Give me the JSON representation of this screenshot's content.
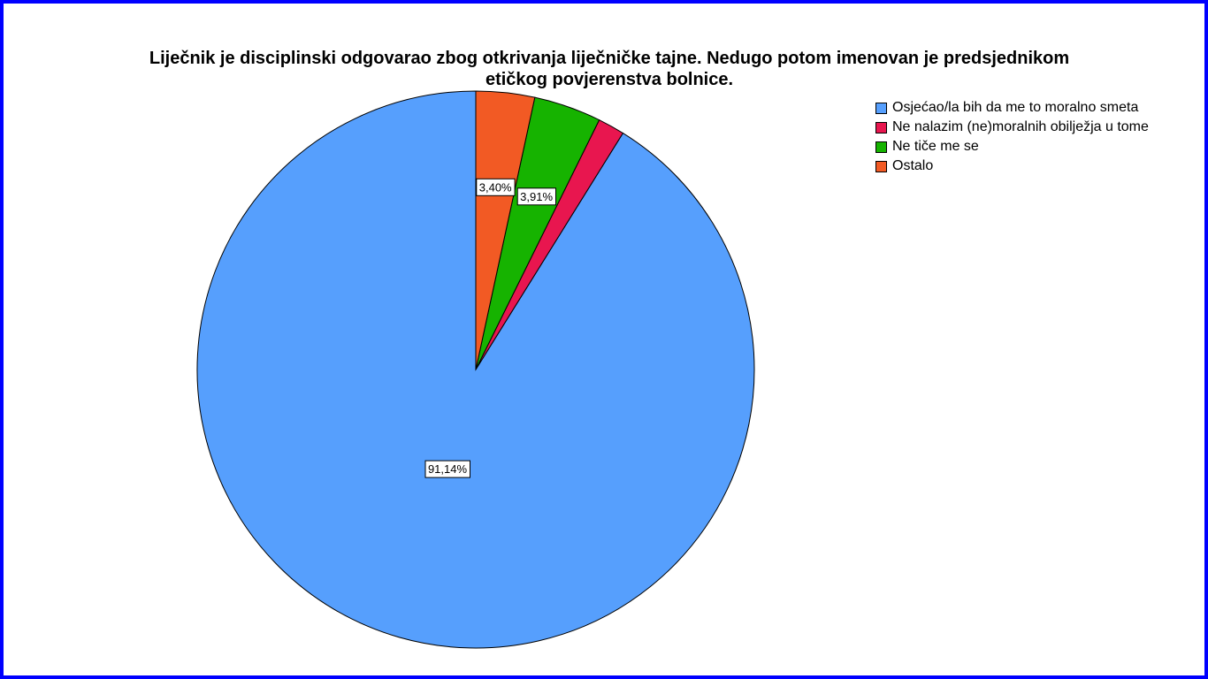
{
  "chart_data": {
    "type": "pie",
    "title": "Liječnik je disciplinski odgovarao zbog otkrivanja liječničke tajne. Nedugo potom imenovan je predsjednikom etičkog povjerenstva bolnice.",
    "legend_position": "right",
    "slices": [
      {
        "name": "Osjećao/la bih da me to moralno smeta",
        "value": 91.14,
        "label": "91,14%",
        "color": "#569ffd"
      },
      {
        "name": "Ne nalazim (ne)moralnih obilježja u tome",
        "value": 1.55,
        "label": "",
        "color": "#e8164f"
      },
      {
        "name": "Ne tiče me se",
        "value": 3.91,
        "label": "3,91%",
        "color": "#16b300"
      },
      {
        "name": "Ostalo",
        "value": 3.4,
        "label": "3,40%",
        "color": "#f25a24"
      }
    ]
  }
}
